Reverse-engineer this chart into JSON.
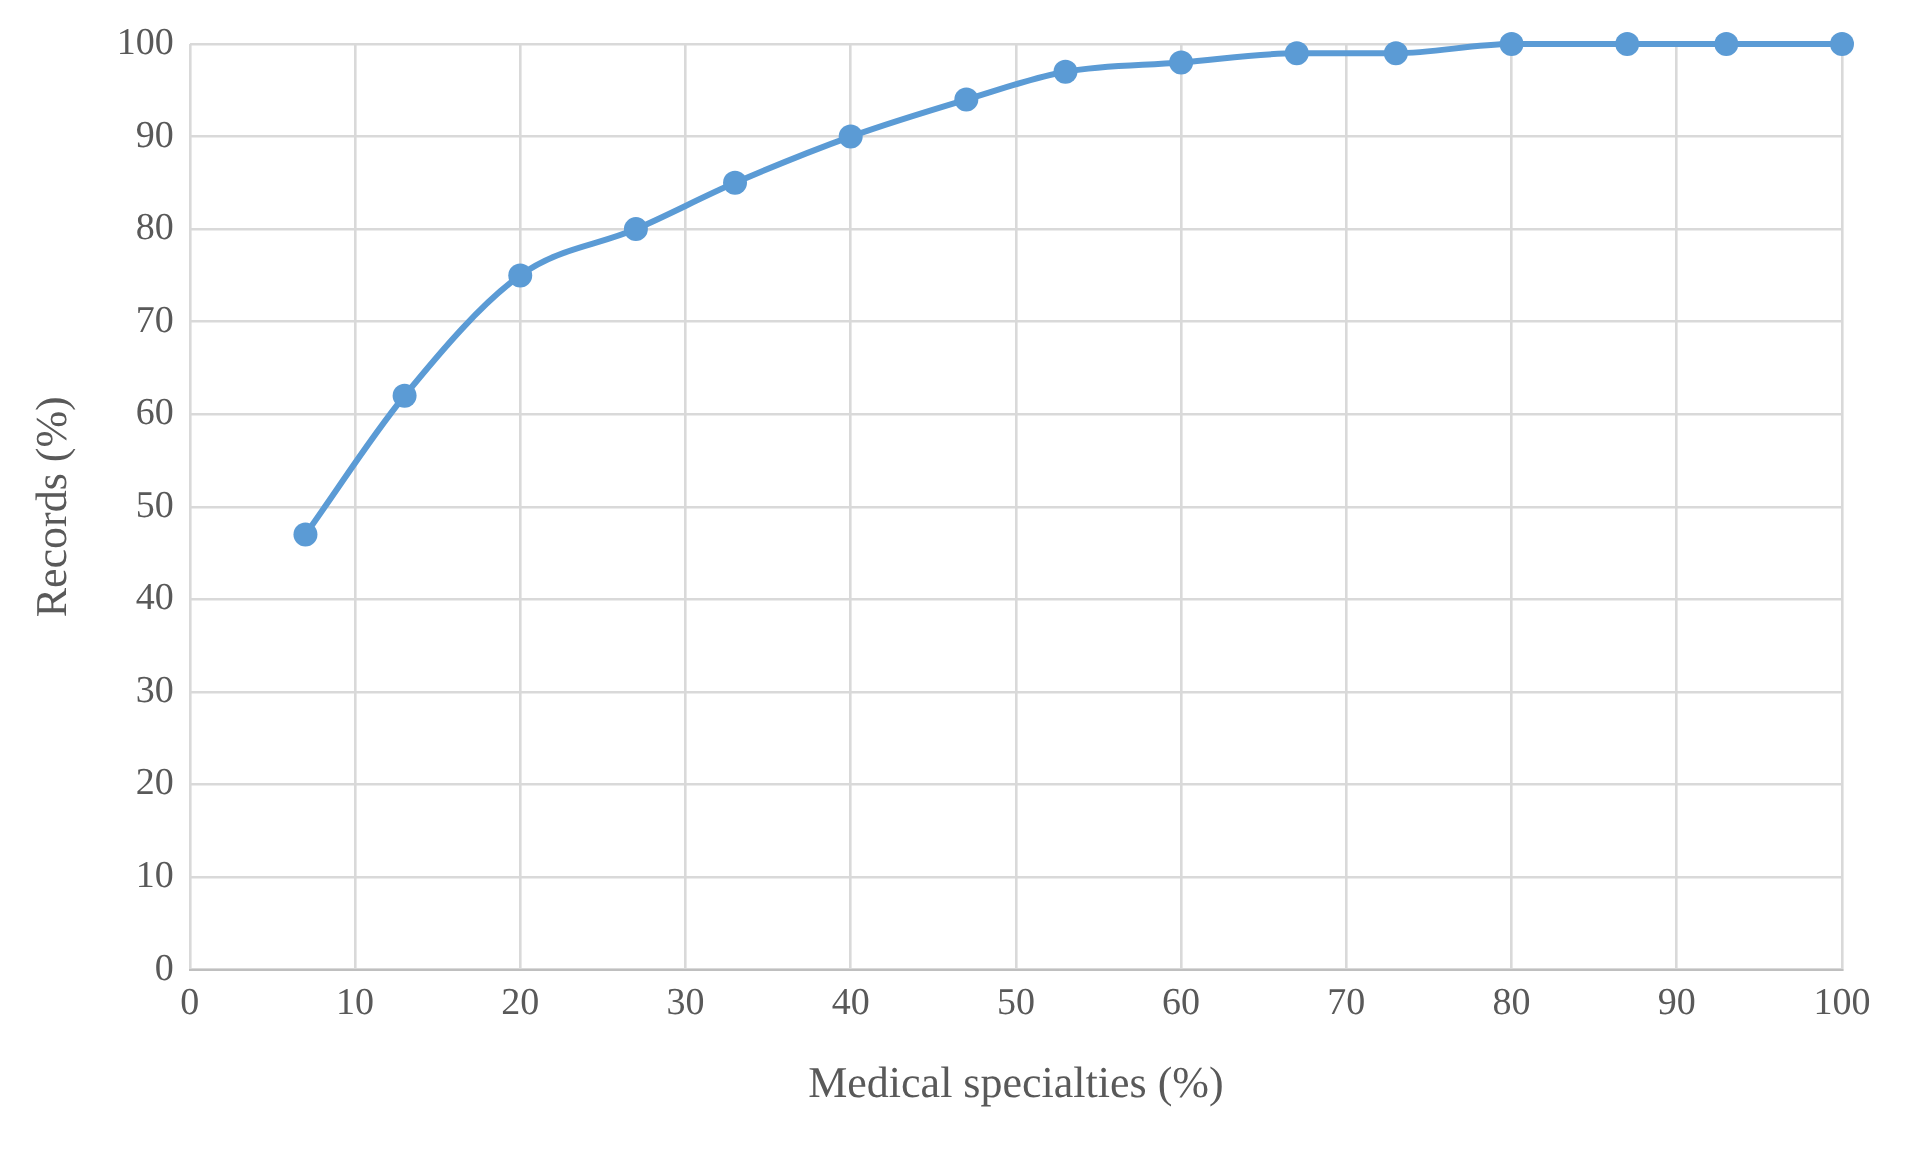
{
  "chart_data": {
    "type": "line",
    "xlabel": "Medical specialties (%)",
    "ylabel": "Records (%)",
    "x": [
      7,
      13,
      20,
      27,
      33,
      40,
      47,
      53,
      60,
      67,
      73,
      80,
      87,
      93,
      100
    ],
    "series": [
      {
        "color": "#5b9bd5",
        "values": [
          47,
          62,
          75,
          80,
          85,
          90,
          94,
          97,
          98,
          99,
          99,
          100,
          100,
          100,
          100
        ]
      }
    ],
    "xlim": [
      0,
      100
    ],
    "xticks": [
      0,
      10,
      20,
      30,
      40,
      50,
      60,
      70,
      80,
      90,
      100
    ],
    "ylim": [
      0,
      100
    ],
    "yticks": [
      0,
      10,
      20,
      30,
      40,
      50,
      60,
      70,
      80,
      90,
      100
    ],
    "grid": true,
    "legend": false,
    "marker": "circle",
    "line_style": "solid"
  }
}
